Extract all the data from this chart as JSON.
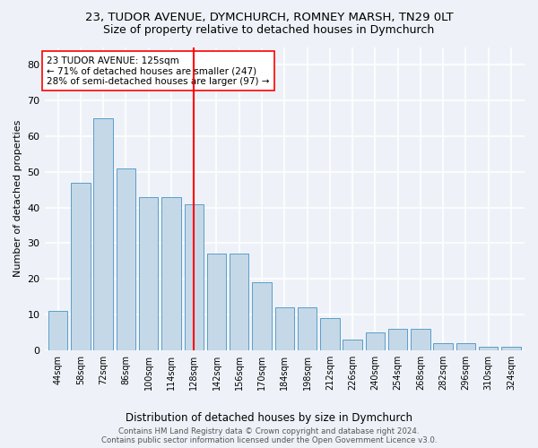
{
  "title": "23, TUDOR AVENUE, DYMCHURCH, ROMNEY MARSH, TN29 0LT",
  "subtitle": "Size of property relative to detached houses in Dymchurch",
  "xlabel": "Distribution of detached houses by size in Dymchurch",
  "ylabel": "Number of detached properties",
  "bar_values": [
    11,
    47,
    65,
    51,
    43,
    43,
    41,
    27,
    27,
    19,
    12,
    12,
    9,
    3,
    5,
    6,
    6,
    2,
    2,
    1,
    1
  ],
  "bin_labels": [
    "44sqm",
    "58sqm",
    "72sqm",
    "86sqm",
    "100sqm",
    "114sqm",
    "128sqm",
    "142sqm",
    "156sqm",
    "170sqm",
    "184sqm",
    "198sqm",
    "212sqm",
    "226sqm",
    "240sqm",
    "254sqm",
    "268sqm",
    "282sqm",
    "296sqm",
    "310sqm",
    "324sqm"
  ],
  "bar_color": "#c5d8e8",
  "bar_edge_color": "#5a9ec8",
  "highlight_bin": 6,
  "highlight_color": "red",
  "annotation_text": "23 TUDOR AVENUE: 125sqm\n← 71% of detached houses are smaller (247)\n28% of semi-detached houses are larger (97) →",
  "annotation_box_color": "white",
  "annotation_box_edge": "red",
  "footer_line1": "Contains HM Land Registry data © Crown copyright and database right 2024.",
  "footer_line2": "Contains public sector information licensed under the Open Government Licence v3.0.",
  "ylim": [
    0,
    85
  ],
  "yticks": [
    0,
    10,
    20,
    30,
    40,
    50,
    60,
    70,
    80
  ],
  "background_color": "#eef2f8",
  "grid_color": "white",
  "title_fontsize": 9.5,
  "subtitle_fontsize": 9
}
